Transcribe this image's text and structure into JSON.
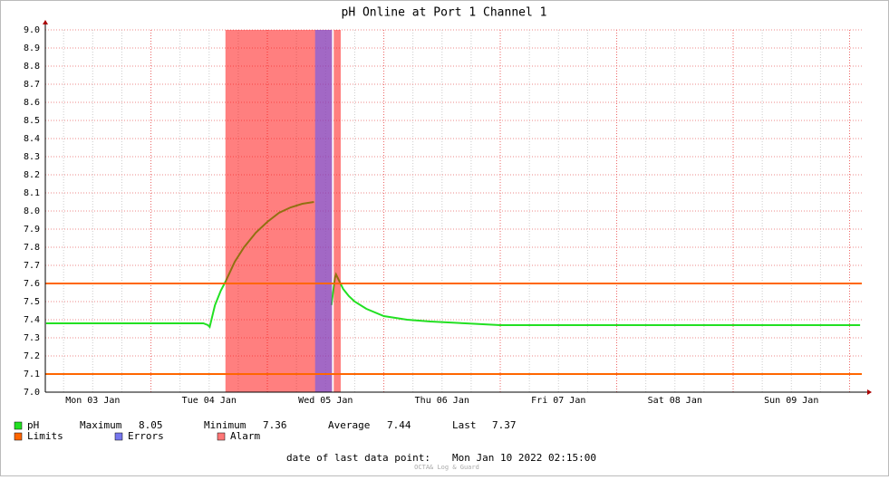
{
  "chart_data": {
    "type": "line",
    "title": "pH Online at Port 1 Channel 1",
    "xlim": [
      0.093,
      7.105
    ],
    "xticks": [
      {
        "value": 0.5,
        "label": "Mon 03 Jan"
      },
      {
        "value": 1.5,
        "label": "Tue 04 Jan"
      },
      {
        "value": 2.5,
        "label": "Wed 05 Jan"
      },
      {
        "value": 3.5,
        "label": "Thu 06 Jan"
      },
      {
        "value": 4.5,
        "label": "Fri 07 Jan"
      },
      {
        "value": 5.5,
        "label": "Sat 08 Jan"
      },
      {
        "value": 6.5,
        "label": "Sun 09 Jan"
      }
    ],
    "x_grid": [
      1,
      2,
      3,
      4,
      5,
      6,
      7
    ],
    "minor_grid_step": 0.25,
    "ylim": [
      7.0,
      9.0
    ],
    "yticks": [
      {
        "value": 7.0,
        "label": "7.0"
      },
      7.1,
      7.2,
      7.3,
      7.4,
      7.5,
      7.6,
      7.7,
      7.8,
      7.9,
      {
        "value": 8.0,
        "label": "8.0"
      },
      8.1,
      8.2,
      8.3,
      8.4,
      8.5,
      8.6,
      8.7,
      8.8,
      8.9,
      {
        "value": 9.0,
        "label": "9.0"
      }
    ],
    "grid": true,
    "series": [
      {
        "name": "pH",
        "color": "#22e022",
        "x": [
          0.1,
          0.5,
          1.0,
          1.45,
          1.49,
          1.505,
          1.55,
          1.6,
          1.64,
          1.72,
          1.8,
          1.9,
          2.0,
          2.1,
          2.2,
          2.3,
          2.4,
          2.48,
          2.55,
          2.58,
          2.59,
          2.62,
          2.65,
          2.7,
          2.75,
          2.85,
          3.0,
          3.2,
          3.4,
          3.7,
          4.0,
          4.5,
          5.0,
          5.5,
          6.0,
          6.5,
          7.0,
          7.09
        ],
        "values": [
          7.38,
          7.38,
          7.38,
          7.38,
          7.37,
          7.36,
          7.48,
          7.56,
          7.61,
          7.72,
          7.8,
          7.88,
          7.94,
          7.99,
          8.02,
          8.04,
          8.05,
          null,
          7.48,
          7.63,
          7.65,
          7.61,
          7.57,
          7.53,
          7.5,
          7.46,
          7.42,
          7.4,
          7.39,
          7.38,
          7.37,
          7.37,
          7.37,
          7.37,
          7.37,
          7.37,
          7.37,
          7.37
        ]
      }
    ],
    "limits": {
      "name": "Limits",
      "color": "#ff6600",
      "values": [
        7.1,
        7.6
      ]
    },
    "errors": {
      "name": "Errors",
      "color": "#5555ff",
      "periods": [
        {
          "start": 2.41,
          "end": 2.555
        }
      ]
    },
    "alarm": {
      "name": "Alarm",
      "color": "#ff0000",
      "periods": [
        {
          "start": 1.64,
          "end": 2.555
        },
        {
          "start": 2.57,
          "end": 2.63
        }
      ]
    },
    "stats": [
      {
        "label": "Maximum",
        "value": 8.05
      },
      {
        "label": "Minimum",
        "value": 7.36
      },
      {
        "label": "Average",
        "value": 7.44
      },
      {
        "label": "Last",
        "value": 7.37
      }
    ],
    "footer": {
      "label": "date of last data point:",
      "date": "Mon Jan 10 2022 02:15:00"
    },
    "watermark": "OCTA& Log & Guard"
  }
}
